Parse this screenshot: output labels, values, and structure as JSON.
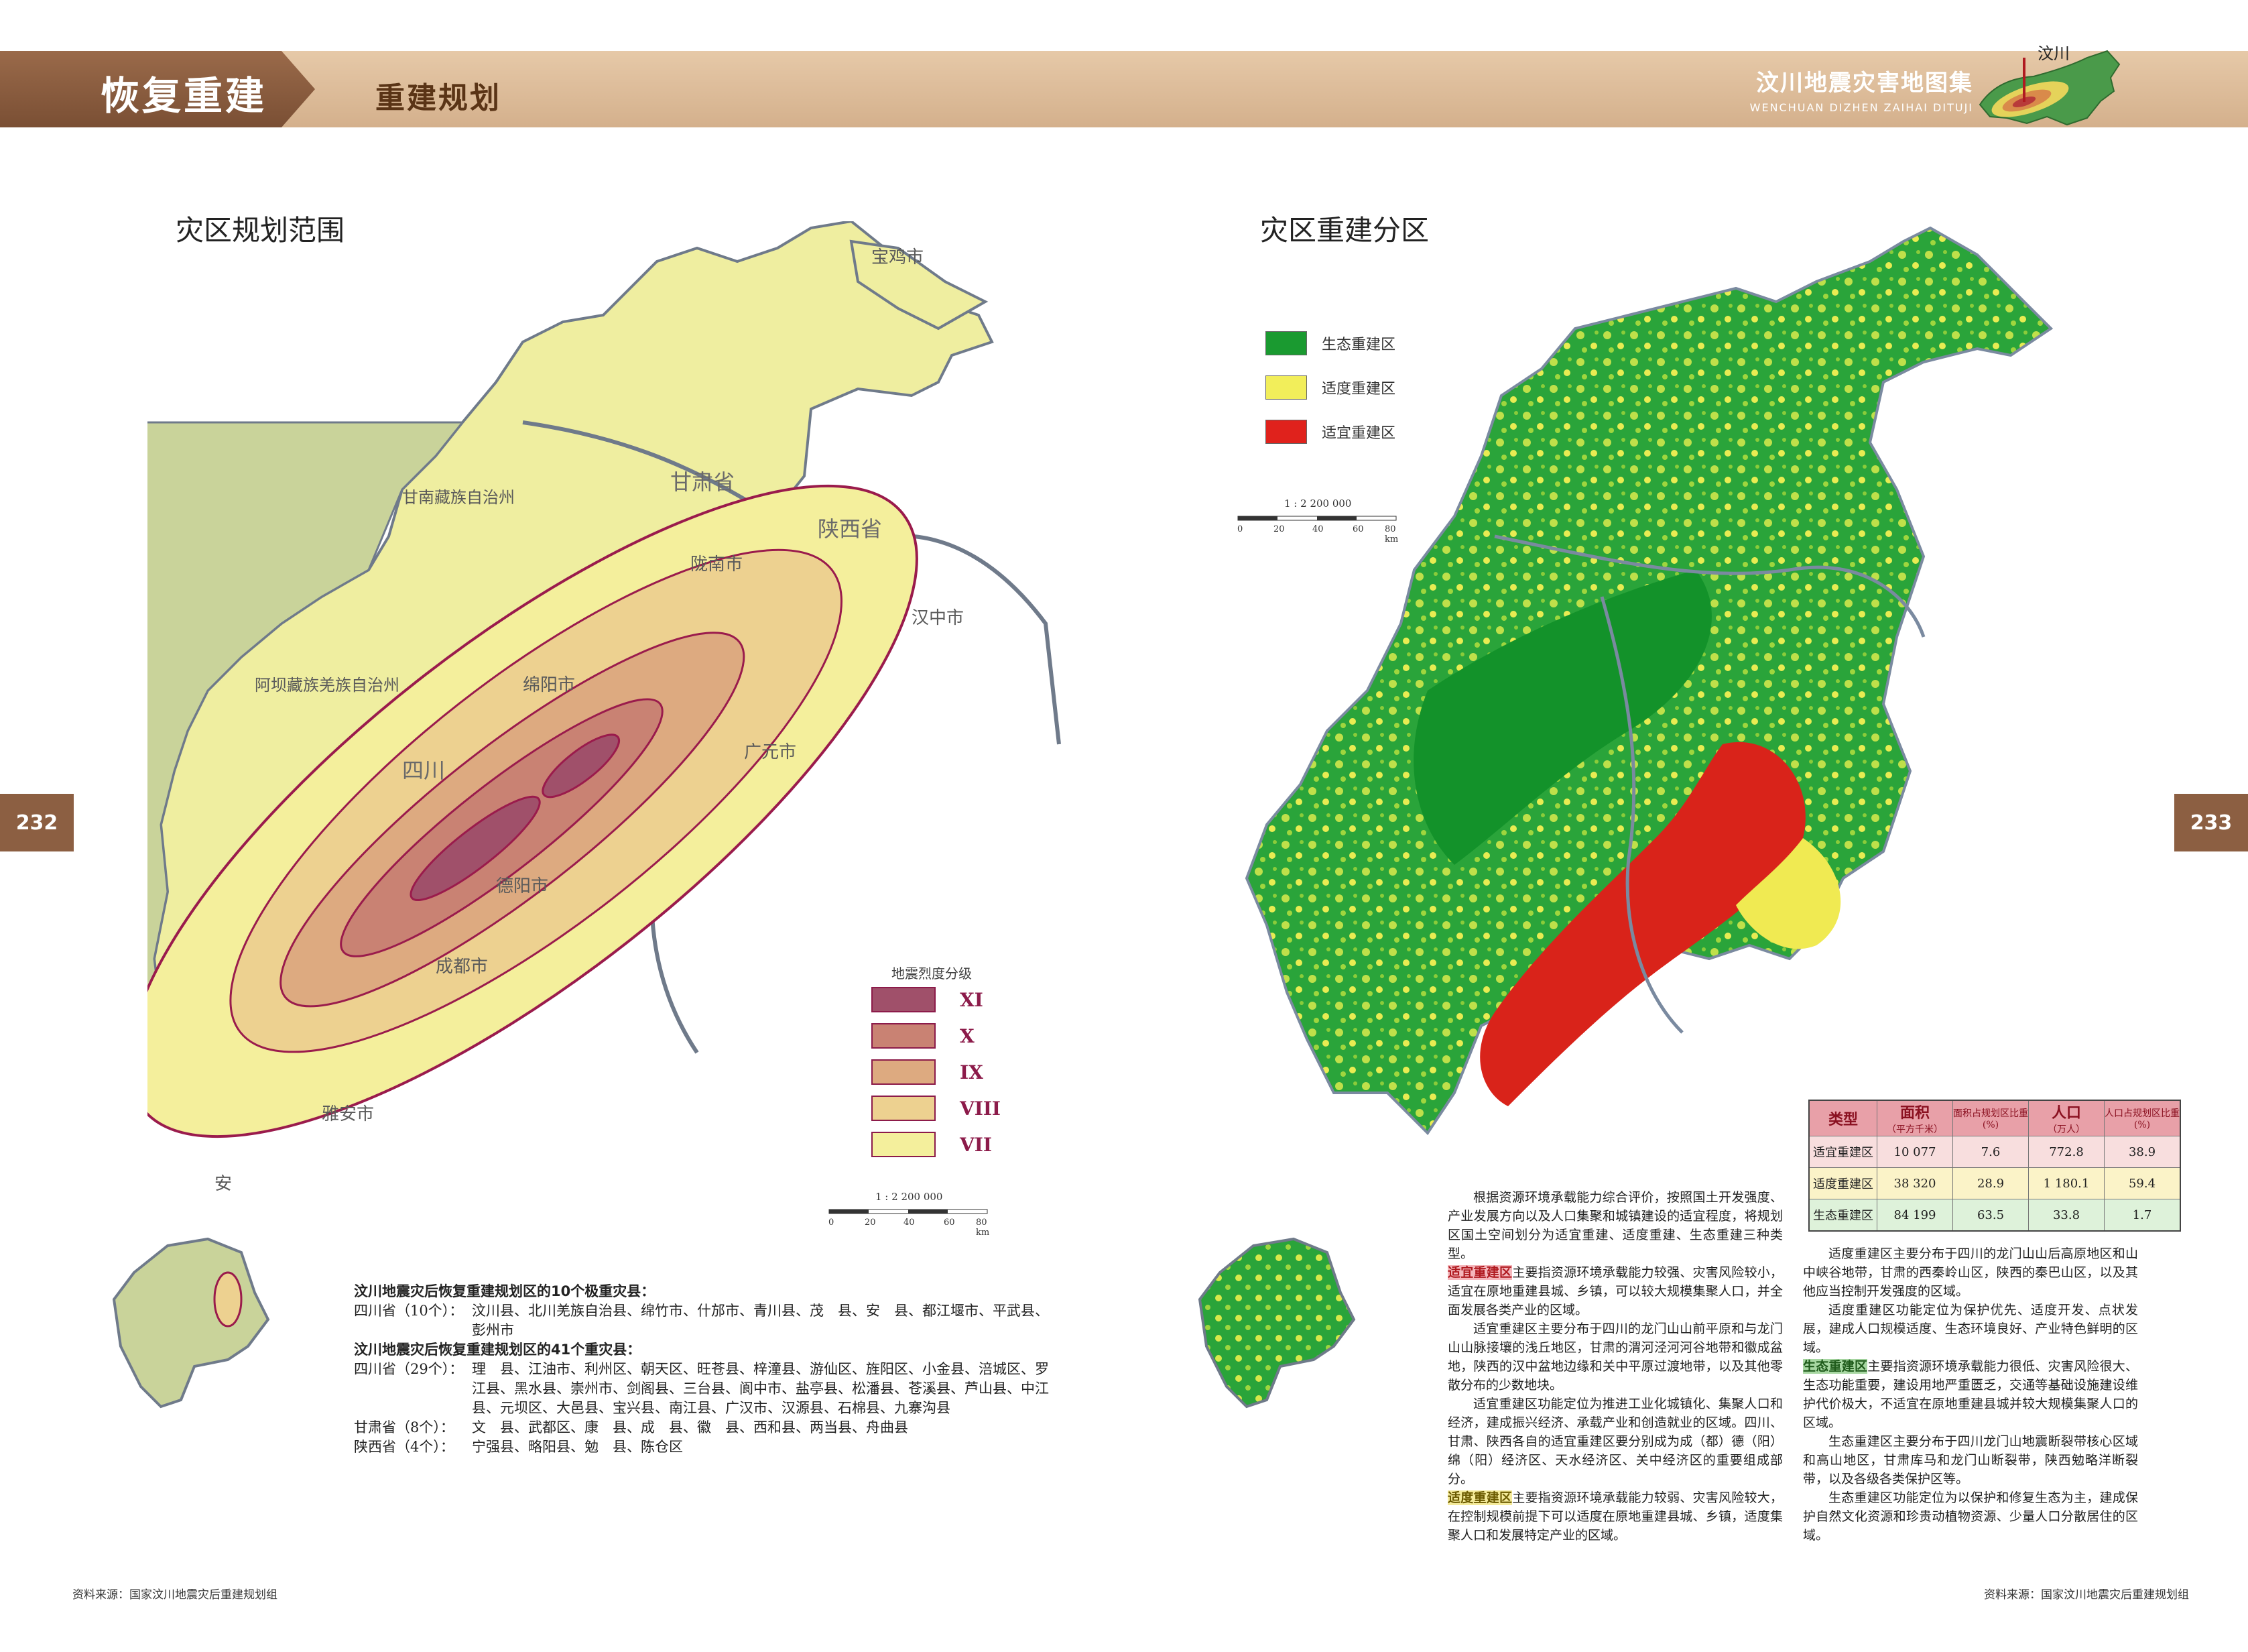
{
  "header": {
    "chapter": "恢复重建",
    "section": "重建规划",
    "atlas_title_cn": "汶川地震灾害地图集",
    "atlas_title_en": "WENCHUAN DIZHEN ZAIHAI DITUJI",
    "logo_label": "汶川"
  },
  "pages": {
    "left": "232",
    "right": "233"
  },
  "left_map": {
    "title": "灾区规划范围",
    "legend_title": "地震烈度分级",
    "intensity_levels": [
      {
        "label": "XI",
        "color": "#a0506a"
      },
      {
        "label": "X",
        "color": "#c98273"
      },
      {
        "label": "IX",
        "color": "#ddaa80"
      },
      {
        "label": "VIII",
        "color": "#edd190"
      },
      {
        "label": "VII",
        "color": "#f4ef9c"
      }
    ],
    "scale_ratio": "1 : 2 200 000",
    "scale_ticks": [
      "0",
      "20",
      "40",
      "60",
      "80 km"
    ],
    "place_labels": [
      "甘肃省",
      "陕西省",
      "四川",
      "宝鸡市",
      "陇南市",
      "广元市",
      "汉中市",
      "绵阳市",
      "德阳市",
      "成都市",
      "阿坝藏族羌族自治州",
      "甘南藏族自治州",
      "雅安市",
      "安"
    ]
  },
  "right_map": {
    "title": "灾区重建分区",
    "legend": [
      {
        "label": "生态重建区",
        "color": "#1a9a30"
      },
      {
        "label": "适度重建区",
        "color": "#f2ee5a"
      },
      {
        "label": "适宜重建区",
        "color": "#e0221c"
      }
    ],
    "scale_ratio": "1 : 2 200 000",
    "scale_ticks": [
      "0",
      "20",
      "40",
      "60",
      "80 km"
    ]
  },
  "counties_text": {
    "h1": "汶川地震灾后恢复重建规划区的10个极重灾县：",
    "r1_prov": "四川省（10个）：",
    "r1_list": "汶川县、北川羌族自治县、绵竹市、什邡市、青川县、茂　县、安　县、都江堰市、平武县、彭州市",
    "h2": "汶川地震灾后恢复重建规划区的41个重灾县：",
    "r2_prov": "四川省（29个）：",
    "r2_list": "理　县、江油市、利州区、朝天区、旺苍县、梓潼县、游仙区、旌阳区、小金县、涪城区、罗江县、黑水县、崇州市、剑阁县、三台县、阆中市、盐亭县、松潘县、苍溪县、芦山县、中江县、元坝区、大邑县、宝兴县、南江县、广汉市、汉源县、石棉县、九寨沟县",
    "r3_prov": "甘肃省（8个）：",
    "r3_list": "文　县、武都区、康　县、成　县、徽　县、西和县、两当县、舟曲县",
    "r4_prov": "陕西省（4个）：",
    "r4_list": "宁强县、略阳县、勉　县、陈仓区"
  },
  "stats_table": {
    "headers": [
      {
        "main": "类型",
        "sub": ""
      },
      {
        "main": "面积",
        "sub": "（平方千米）"
      },
      {
        "main": "",
        "sub": "面积占规划区比重(%)"
      },
      {
        "main": "人口",
        "sub": "（万人）"
      },
      {
        "main": "",
        "sub": "人口占规划区比重(%)"
      }
    ],
    "rows": [
      {
        "type": "适宜重建区",
        "area": "10 077",
        "area_pct": "7.6",
        "pop": "772.8",
        "pop_pct": "38.9"
      },
      {
        "type": "适度重建区",
        "area": "38 320",
        "area_pct": "28.9",
        "pop": "1 180.1",
        "pop_pct": "59.4"
      },
      {
        "type": "生态重建区",
        "area": "84 199",
        "area_pct": "63.5",
        "pop": "33.8",
        "pop_pct": "1.7"
      }
    ]
  },
  "body_text": {
    "p1": "根据资源环境承载能力综合评价，按照国土开发强度、产业发展方向以及人口集聚和城镇建设的适宜程度，将规划区国土空间划分为适宜重建、适度重建、生态重建三种类型。",
    "p2_hl": "适宜重建区",
    "p2": "主要指资源环境承载能力较强、灾害风险较小，适宜在原地重建县城、乡镇，可以较大规模集聚人口，并全面发展各类产业的区域。",
    "p3": "适宜重建区主要分布于四川的龙门山山前平原和与龙门山山脉接壤的浅丘地区，甘肃的渭河泾河河谷地带和徽成盆地，陕西的汉中盆地边缘和关中平原过渡地带，以及其他零散分布的少数地块。",
    "p4": "适宜重建区功能定位为推进工业化城镇化、集聚人口和经济，建成振兴经济、承载产业和创造就业的区域。四川、甘肃、陕西各自的适宜重建区要分别成为成（都）德（阳）绵（阳）经济区、天水经济区、关中经济区的重要组成部分。",
    "p5_hl": "适度重建区",
    "p5": "主要指资源环境承载能力较弱、灾害风险较大，在控制规模前提下可以适度在原地重建县城、乡镇，适度集聚人口和发展特定产业的区域。",
    "p6": "适度重建区主要分布于四川的龙门山山后高原地区和山中峡谷地带，甘肃的西秦岭山区，陕西的秦巴山区，以及其他应当控制开发强度的区域。",
    "p7": "适度重建区功能定位为保护优先、适度开发、点状发展，建成人口规模适度、生态环境良好、产业特色鲜明的区域。",
    "p8_hl": "生态重建区",
    "p8": "主要指资源环境承载能力很低、灾害风险很大、生态功能重要，建设用地严重匮乏，交通等基础设施建设维护代价极大，不适宜在原地重建县城并较大规模集聚人口的区域。",
    "p9": "生态重建区主要分布于四川龙门山地震断裂带核心区域和高山地区，甘肃库马和龙门山断裂带，陕西勉略洋断裂带，以及各级各类保护区等。",
    "p10": "生态重建区功能定位为以保护和修复生态为主，建成保护自然文化资源和珍贵动植物资源、少量人口分散居住的区域。"
  },
  "sources": {
    "left": "资料来源：国家汶川地震灾后重建规划组",
    "right": "资料来源：国家汶川地震灾后重建规划组"
  }
}
